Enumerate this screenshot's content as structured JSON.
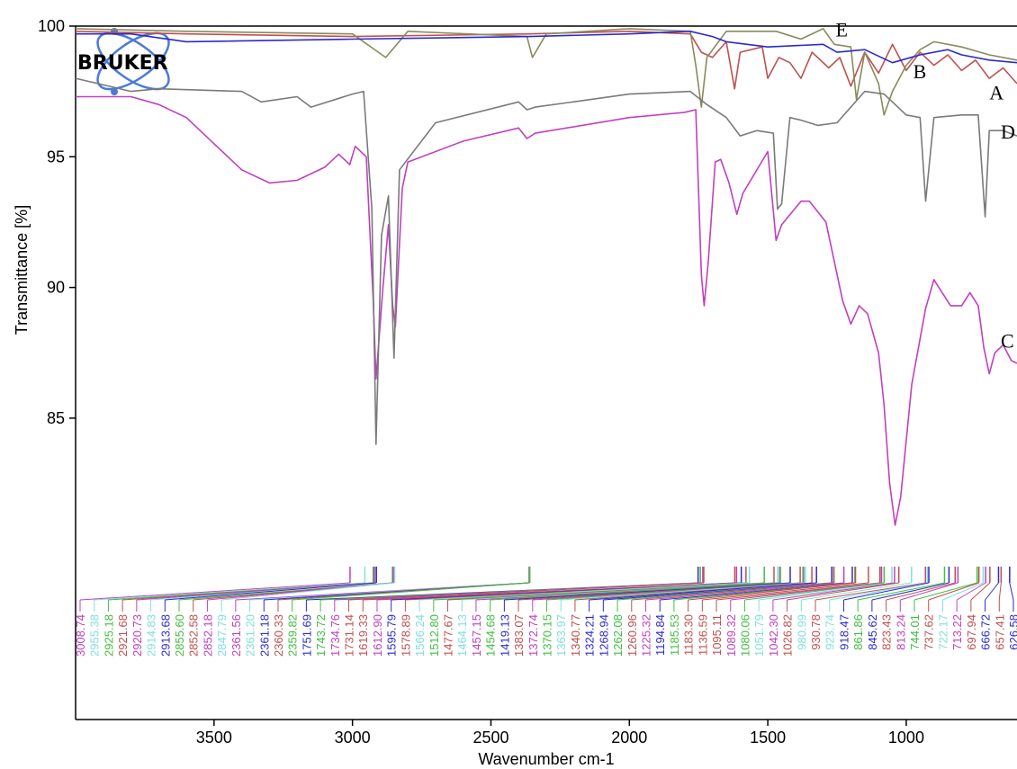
{
  "chart_data": {
    "type": "line",
    "title": "",
    "xlabel": "Wavenumber cm-1",
    "ylabel": "Transmittance [%]",
    "xlim": [
      4000,
      600
    ],
    "ylim": [
      75,
      100
    ],
    "x_reversed": true,
    "grid": false,
    "x_ticks": [
      3500,
      3000,
      2500,
      2000,
      1500,
      1000
    ],
    "y_ticks": [
      85,
      90,
      95,
      100
    ],
    "logo": "BRUKER",
    "series": [
      {
        "name": "A",
        "color": "#c0504d",
        "label_at": [
          700,
          97.2
        ],
        "points": [
          [
            4000,
            99.8
          ],
          [
            3600,
            99.7
          ],
          [
            3000,
            99.6
          ],
          [
            2360,
            99.7
          ],
          [
            2000,
            99.8
          ],
          [
            1780,
            99.7
          ],
          [
            1740,
            99.0
          ],
          [
            1700,
            98.8
          ],
          [
            1650,
            99.4
          ],
          [
            1620,
            97.6
          ],
          [
            1600,
            99.0
          ],
          [
            1520,
            99.2
          ],
          [
            1500,
            98.0
          ],
          [
            1460,
            98.8
          ],
          [
            1420,
            98.6
          ],
          [
            1380,
            98.0
          ],
          [
            1340,
            99.0
          ],
          [
            1280,
            98.4
          ],
          [
            1240,
            98.8
          ],
          [
            1200,
            97.7
          ],
          [
            1150,
            99.0
          ],
          [
            1100,
            98.2
          ],
          [
            1050,
            99.3
          ],
          [
            1000,
            98.3
          ],
          [
            950,
            99.0
          ],
          [
            900,
            98.5
          ],
          [
            850,
            98.9
          ],
          [
            800,
            98.3
          ],
          [
            750,
            98.7
          ],
          [
            700,
            98.0
          ],
          [
            650,
            98.4
          ],
          [
            600,
            97.8
          ]
        ]
      },
      {
        "name": "B",
        "color": "#8a8a5c",
        "label_at": [
          975,
          98.0
        ],
        "points": [
          [
            4000,
            99.9
          ],
          [
            3600,
            99.8
          ],
          [
            3000,
            99.7
          ],
          [
            2880,
            98.8
          ],
          [
            2800,
            99.8
          ],
          [
            2370,
            99.6
          ],
          [
            2350,
            98.8
          ],
          [
            2300,
            99.7
          ],
          [
            2000,
            99.9
          ],
          [
            1780,
            99.8
          ],
          [
            1760,
            98.5
          ],
          [
            1740,
            96.9
          ],
          [
            1720,
            98.8
          ],
          [
            1650,
            99.8
          ],
          [
            1560,
            99.8
          ],
          [
            1470,
            99.8
          ],
          [
            1380,
            99.5
          ],
          [
            1300,
            99.9
          ],
          [
            1260,
            99.3
          ],
          [
            1200,
            99.2
          ],
          [
            1180,
            97.2
          ],
          [
            1150,
            99.0
          ],
          [
            1100,
            97.8
          ],
          [
            1080,
            96.6
          ],
          [
            1050,
            97.5
          ],
          [
            1000,
            98.5
          ],
          [
            950,
            99.1
          ],
          [
            900,
            99.4
          ],
          [
            800,
            99.2
          ],
          [
            700,
            98.9
          ],
          [
            600,
            98.7
          ]
        ]
      },
      {
        "name": "C",
        "color": "#c040c0",
        "label_at": [
          620,
          87.7
        ],
        "points": [
          [
            4000,
            97.3
          ],
          [
            3800,
            97.3
          ],
          [
            3700,
            97.0
          ],
          [
            3600,
            96.5
          ],
          [
            3500,
            95.5
          ],
          [
            3400,
            94.5
          ],
          [
            3300,
            94.0
          ],
          [
            3200,
            94.1
          ],
          [
            3100,
            94.6
          ],
          [
            3050,
            95.1
          ],
          [
            3010,
            94.7
          ],
          [
            2990,
            95.4
          ],
          [
            2950,
            95.0
          ],
          [
            2925,
            89.5
          ],
          [
            2915,
            86.5
          ],
          [
            2890,
            90.0
          ],
          [
            2870,
            92.4
          ],
          [
            2855,
            89.3
          ],
          [
            2845,
            88.5
          ],
          [
            2820,
            93.8
          ],
          [
            2800,
            94.8
          ],
          [
            2600,
            95.6
          ],
          [
            2400,
            96.1
          ],
          [
            2370,
            95.7
          ],
          [
            2340,
            95.9
          ],
          [
            2000,
            96.5
          ],
          [
            1800,
            96.7
          ],
          [
            1760,
            96.8
          ],
          [
            1740,
            90.5
          ],
          [
            1730,
            89.3
          ],
          [
            1715,
            91.0
          ],
          [
            1690,
            94.8
          ],
          [
            1670,
            94.9
          ],
          [
            1640,
            94.0
          ],
          [
            1612,
            92.8
          ],
          [
            1590,
            93.6
          ],
          [
            1500,
            95.2
          ],
          [
            1470,
            91.8
          ],
          [
            1450,
            92.4
          ],
          [
            1380,
            93.3
          ],
          [
            1350,
            93.3
          ],
          [
            1290,
            92.5
          ],
          [
            1230,
            89.5
          ],
          [
            1200,
            88.6
          ],
          [
            1170,
            89.3
          ],
          [
            1140,
            89.0
          ],
          [
            1100,
            87.5
          ],
          [
            1080,
            85.5
          ],
          [
            1060,
            82.5
          ],
          [
            1040,
            80.9
          ],
          [
            1020,
            82.0
          ],
          [
            980,
            86.3
          ],
          [
            930,
            89.2
          ],
          [
            900,
            90.3
          ],
          [
            870,
            89.8
          ],
          [
            840,
            89.3
          ],
          [
            800,
            89.3
          ],
          [
            770,
            89.8
          ],
          [
            740,
            89.3
          ],
          [
            720,
            87.7
          ],
          [
            700,
            86.7
          ],
          [
            680,
            87.5
          ],
          [
            650,
            87.8
          ],
          [
            620,
            87.2
          ],
          [
            600,
            87.1
          ]
        ]
      },
      {
        "name": "D",
        "color": "#7a7a7a",
        "label_at": [
          620,
          95.7
        ],
        "points": [
          [
            4000,
            98.0
          ],
          [
            3800,
            97.5
          ],
          [
            3700,
            97.6
          ],
          [
            3400,
            97.5
          ],
          [
            3330,
            97.1
          ],
          [
            3200,
            97.3
          ],
          [
            3150,
            96.9
          ],
          [
            3000,
            97.4
          ],
          [
            2960,
            97.5
          ],
          [
            2930,
            93.0
          ],
          [
            2915,
            84.0
          ],
          [
            2895,
            92.0
          ],
          [
            2870,
            93.5
          ],
          [
            2850,
            87.3
          ],
          [
            2830,
            94.5
          ],
          [
            2700,
            96.3
          ],
          [
            2400,
            97.1
          ],
          [
            2370,
            96.8
          ],
          [
            2340,
            96.9
          ],
          [
            2000,
            97.4
          ],
          [
            1780,
            97.5
          ],
          [
            1720,
            97.0
          ],
          [
            1650,
            96.5
          ],
          [
            1600,
            95.8
          ],
          [
            1540,
            96.0
          ],
          [
            1480,
            95.9
          ],
          [
            1465,
            93.0
          ],
          [
            1450,
            93.2
          ],
          [
            1420,
            96.5
          ],
          [
            1380,
            96.4
          ],
          [
            1320,
            96.2
          ],
          [
            1250,
            96.3
          ],
          [
            1150,
            97.5
          ],
          [
            1080,
            97.4
          ],
          [
            1000,
            96.6
          ],
          [
            950,
            96.5
          ],
          [
            930,
            93.3
          ],
          [
            900,
            96.5
          ],
          [
            800,
            96.6
          ],
          [
            740,
            96.6
          ],
          [
            715,
            92.7
          ],
          [
            700,
            96.0
          ],
          [
            650,
            96.0
          ],
          [
            600,
            95.8
          ]
        ]
      },
      {
        "name": "E",
        "color": "#2a2ad0",
        "label_at": [
          1255,
          99.6
        ],
        "points": [
          [
            4000,
            99.7
          ],
          [
            3800,
            99.7
          ],
          [
            3600,
            99.4
          ],
          [
            3000,
            99.5
          ],
          [
            2360,
            99.6
          ],
          [
            2000,
            99.7
          ],
          [
            1780,
            99.8
          ],
          [
            1700,
            99.6
          ],
          [
            1650,
            99.4
          ],
          [
            1500,
            99.2
          ],
          [
            1300,
            99.3
          ],
          [
            1250,
            99.0
          ],
          [
            1150,
            99.1
          ],
          [
            1050,
            98.6
          ],
          [
            950,
            98.9
          ],
          [
            850,
            99.1
          ],
          [
            800,
            98.9
          ],
          [
            700,
            98.7
          ],
          [
            600,
            98.6
          ]
        ]
      }
    ],
    "peak_labels": [
      {
        "text": "3008.74",
        "color": "#c040c0"
      },
      {
        "text": "2955.38",
        "color": "#80e0e0"
      },
      {
        "text": "2925.18",
        "color": "#40c040"
      },
      {
        "text": "2921.68",
        "color": "#c0504d"
      },
      {
        "text": "2920.73",
        "color": "#c040c0"
      },
      {
        "text": "2914.83",
        "color": "#80e0e0"
      },
      {
        "text": "2913.68",
        "color": "#2a2ad0"
      },
      {
        "text": "2855.60",
        "color": "#40c040"
      },
      {
        "text": "2852.58",
        "color": "#c0504d"
      },
      {
        "text": "2852.18",
        "color": "#c040c0"
      },
      {
        "text": "2847.79",
        "color": "#80e0e0"
      },
      {
        "text": "2361.56",
        "color": "#c040c0"
      },
      {
        "text": "2361.20",
        "color": "#80e0e0"
      },
      {
        "text": "2361.18",
        "color": "#2a2ad0"
      },
      {
        "text": "2360.33",
        "color": "#c0504d"
      },
      {
        "text": "2359.82",
        "color": "#40c040"
      },
      {
        "text": "1751.69",
        "color": "#2a2ad0"
      },
      {
        "text": "1743.72",
        "color": "#40c040"
      },
      {
        "text": "1734.76",
        "color": "#c040c0"
      },
      {
        "text": "1731.14",
        "color": "#c0504d"
      },
      {
        "text": "1619.33",
        "color": "#c0504d"
      },
      {
        "text": "1612.90",
        "color": "#c040c0"
      },
      {
        "text": "1595.79",
        "color": "#2a2ad0"
      },
      {
        "text": "1578.89",
        "color": "#c0504d"
      },
      {
        "text": "1566.24",
        "color": "#80e0e0"
      },
      {
        "text": "1512.80",
        "color": "#40c040"
      },
      {
        "text": "1477.67",
        "color": "#c0504d"
      },
      {
        "text": "1464.13",
        "color": "#80e0e0"
      },
      {
        "text": "1457.15",
        "color": "#c040c0"
      },
      {
        "text": "1454.68",
        "color": "#40c040"
      },
      {
        "text": "1419.13",
        "color": "#2a2ad0"
      },
      {
        "text": "1383.07",
        "color": "#c0504d"
      },
      {
        "text": "1372.74",
        "color": "#c040c0"
      },
      {
        "text": "1370.15",
        "color": "#40c040"
      },
      {
        "text": "1363.97",
        "color": "#80e0e0"
      },
      {
        "text": "1340.77",
        "color": "#c0504d"
      },
      {
        "text": "1324.21",
        "color": "#2a2ad0"
      },
      {
        "text": "1268.94",
        "color": "#2a2ad0"
      },
      {
        "text": "1262.08",
        "color": "#40c040"
      },
      {
        "text": "1260.96",
        "color": "#c0504d"
      },
      {
        "text": "1225.32",
        "color": "#c040c0"
      },
      {
        "text": "1194.84",
        "color": "#2a2ad0"
      },
      {
        "text": "1185.53",
        "color": "#40c040"
      },
      {
        "text": "1183.30",
        "color": "#c0504d"
      },
      {
        "text": "1136.59",
        "color": "#c0504d"
      },
      {
        "text": "1095.11",
        "color": "#c0504d"
      },
      {
        "text": "1089.32",
        "color": "#c040c0"
      },
      {
        "text": "1080.06",
        "color": "#40c040"
      },
      {
        "text": "1051.79",
        "color": "#80e0e0"
      },
      {
        "text": "1042.30",
        "color": "#c040c0"
      },
      {
        "text": "1026.82",
        "color": "#c0504d"
      },
      {
        "text": "980.99",
        "color": "#80e0e0"
      },
      {
        "text": "930.78",
        "color": "#c0504d"
      },
      {
        "text": "923.74",
        "color": "#80e0e0"
      },
      {
        "text": "918.47",
        "color": "#2a2ad0"
      },
      {
        "text": "861.86",
        "color": "#40c040"
      },
      {
        "text": "845.62",
        "color": "#2a2ad0"
      },
      {
        "text": "823.43",
        "color": "#c0504d"
      },
      {
        "text": "813.24",
        "color": "#c040c0"
      },
      {
        "text": "744.01",
        "color": "#40c040"
      },
      {
        "text": "737.62",
        "color": "#c0504d"
      },
      {
        "text": "722.17",
        "color": "#80e0e0"
      },
      {
        "text": "713.22",
        "color": "#c040c0"
      },
      {
        "text": "697.94",
        "color": "#c0504d"
      },
      {
        "text": "666.72",
        "color": "#2a2ad0"
      },
      {
        "text": "657.41",
        "color": "#c0504d"
      },
      {
        "text": "626.58",
        "color": "#2a2ad0"
      }
    ]
  }
}
